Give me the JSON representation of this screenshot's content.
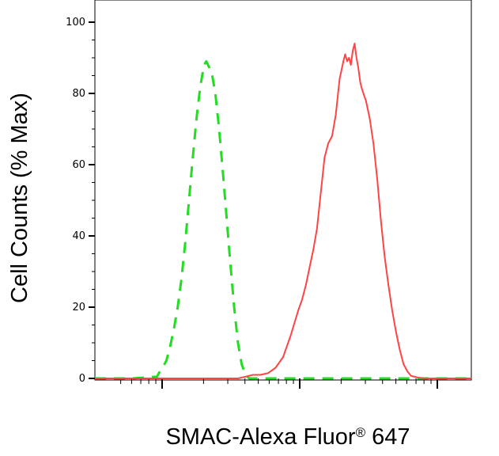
{
  "chart_data": {
    "type": "line",
    "xlabel": "SMAC-Alexa Fluor",
    "xlabel_superscript": "®",
    "xlabel_suffix": " 647",
    "ylabel": "Cell Counts (% Max)",
    "x_scale": "log",
    "x_ticks_labeled": false,
    "ylim": [
      0,
      100
    ],
    "y_ticks": [
      "0",
      "20",
      "40",
      "60",
      "80",
      "100"
    ],
    "grid": false,
    "legend": "none",
    "series": [
      {
        "color": "#22dd22",
        "style": "dashed",
        "points": [
          [
            0.0,
            0
          ],
          [
            0.1,
            0
          ],
          [
            0.165,
            0.5
          ],
          [
            0.17,
            1.5
          ],
          [
            0.18,
            3
          ],
          [
            0.19,
            5
          ],
          [
            0.2,
            9
          ],
          [
            0.21,
            14
          ],
          [
            0.22,
            20
          ],
          [
            0.23,
            28
          ],
          [
            0.24,
            38
          ],
          [
            0.25,
            50
          ],
          [
            0.26,
            62
          ],
          [
            0.27,
            73
          ],
          [
            0.28,
            82
          ],
          [
            0.29,
            88
          ],
          [
            0.296,
            89
          ],
          [
            0.305,
            87
          ],
          [
            0.31,
            86
          ],
          [
            0.32,
            80
          ],
          [
            0.33,
            70
          ],
          [
            0.34,
            58
          ],
          [
            0.35,
            45
          ],
          [
            0.36,
            32
          ],
          [
            0.37,
            20
          ],
          [
            0.38,
            10
          ],
          [
            0.39,
            4
          ],
          [
            0.4,
            1
          ],
          [
            0.41,
            0
          ],
          [
            1.0,
            0
          ]
        ]
      },
      {
        "color": "#ff4444",
        "style": "solid",
        "points": [
          [
            0.0,
            0
          ],
          [
            0.38,
            0
          ],
          [
            0.4,
            0.5
          ],
          [
            0.42,
            1
          ],
          [
            0.44,
            1
          ],
          [
            0.46,
            1.5
          ],
          [
            0.48,
            3
          ],
          [
            0.5,
            6
          ],
          [
            0.52,
            12
          ],
          [
            0.54,
            19
          ],
          [
            0.55,
            22
          ],
          [
            0.56,
            26
          ],
          [
            0.57,
            31
          ],
          [
            0.58,
            36
          ],
          [
            0.59,
            42
          ],
          [
            0.6,
            52
          ],
          [
            0.61,
            62
          ],
          [
            0.62,
            66
          ],
          [
            0.625,
            67
          ],
          [
            0.63,
            68
          ],
          [
            0.64,
            74
          ],
          [
            0.65,
            84
          ],
          [
            0.66,
            89
          ],
          [
            0.665,
            91
          ],
          [
            0.67,
            89
          ],
          [
            0.675,
            90
          ],
          [
            0.68,
            88
          ],
          [
            0.685,
            92
          ],
          [
            0.69,
            94
          ],
          [
            0.695,
            90
          ],
          [
            0.7,
            87
          ],
          [
            0.705,
            83
          ],
          [
            0.71,
            81
          ],
          [
            0.72,
            78
          ],
          [
            0.73,
            73
          ],
          [
            0.74,
            66
          ],
          [
            0.75,
            56
          ],
          [
            0.76,
            44
          ],
          [
            0.77,
            34
          ],
          [
            0.78,
            26
          ],
          [
            0.79,
            19
          ],
          [
            0.8,
            13
          ],
          [
            0.81,
            8
          ],
          [
            0.82,
            4
          ],
          [
            0.83,
            2
          ],
          [
            0.84,
            0.7
          ],
          [
            0.86,
            0.2
          ],
          [
            0.88,
            0
          ],
          [
            1.0,
            0
          ]
        ]
      }
    ]
  }
}
